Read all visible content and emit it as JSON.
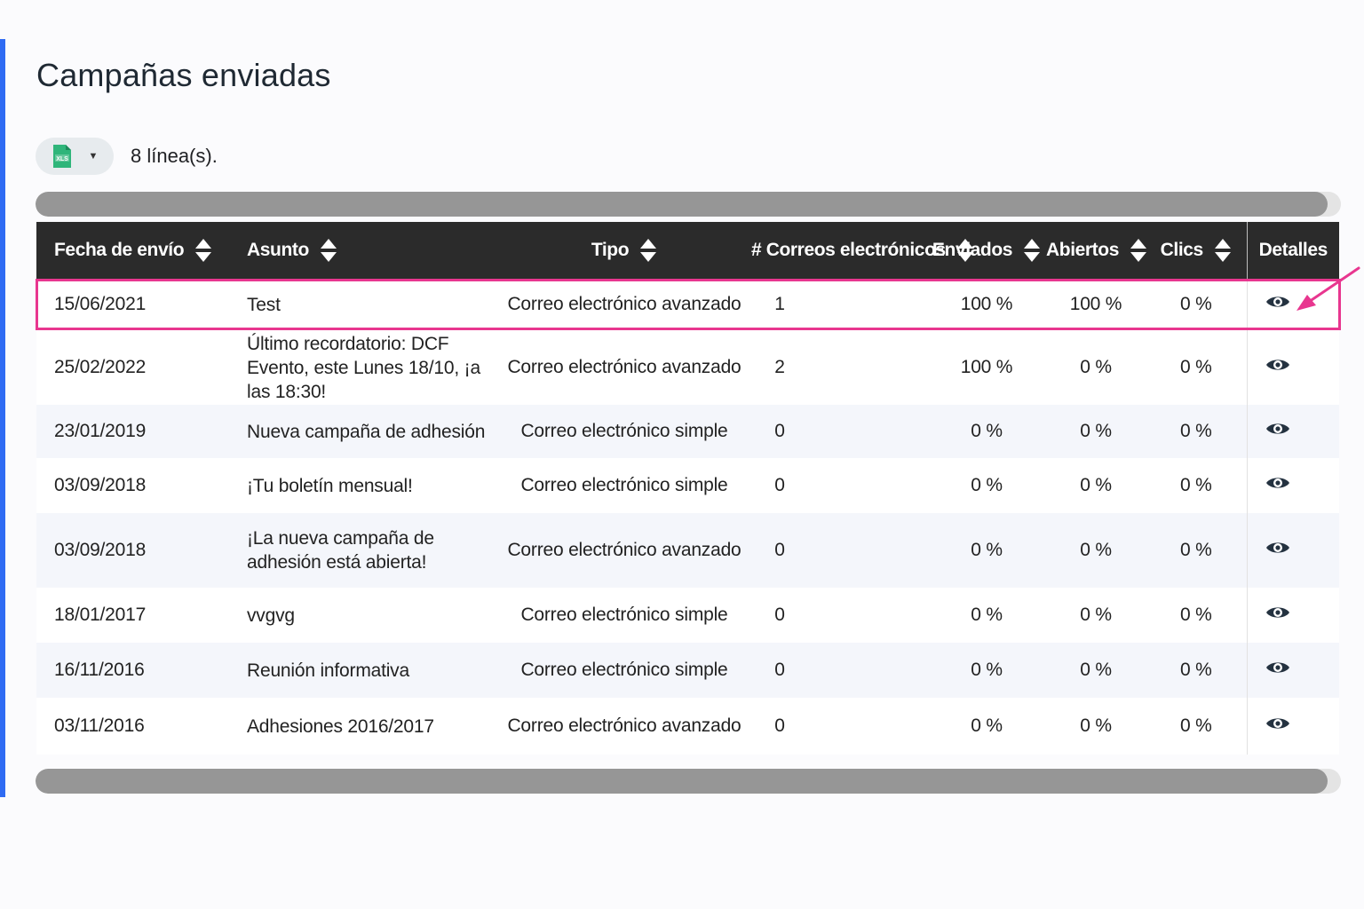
{
  "page": {
    "title": "Campañas enviadas",
    "accent_color": "#2f6bf3",
    "highlight_color": "#e8368f"
  },
  "toolbar": {
    "export_icon": "xls-file-icon",
    "export_dropdown_icon": "caret-down-icon",
    "row_count": "8 línea(s)."
  },
  "table": {
    "headers": {
      "date": "Fecha de envío",
      "subject": "Asunto",
      "type": "Tipo",
      "emails": "# Correos electrónicos",
      "sent": "Enviados",
      "opened": "Abiertos",
      "clicks": "Clics",
      "details": "Detalles"
    },
    "sort_icon": "sort-updown-icon",
    "details_icon": "eye-icon",
    "rows": [
      {
        "date": "15/06/2021",
        "subject": "Test",
        "type": "Correo electrónico avanzado",
        "emails": "1",
        "sent": "100 %",
        "opened": "100 %",
        "clicks": "0 %"
      },
      {
        "date": "25/02/2022",
        "subject": "Último recordatorio: DCF Evento, este Lunes 18/10, ¡a las 18:30!",
        "type": "Correo electrónico avanzado",
        "emails": "2",
        "sent": "100 %",
        "opened": "0 %",
        "clicks": "0 %"
      },
      {
        "date": "23/01/2019",
        "subject": "Nueva campaña de adhesión",
        "type": "Correo electrónico simple",
        "emails": "0",
        "sent": "0 %",
        "opened": "0 %",
        "clicks": "0 %"
      },
      {
        "date": "03/09/2018",
        "subject": "¡Tu boletín mensual!",
        "type": "Correo electrónico simple",
        "emails": "0",
        "sent": "0 %",
        "opened": "0 %",
        "clicks": "0 %"
      },
      {
        "date": "03/09/2018",
        "subject": "¡La nueva campaña de adhesión está abierta!",
        "type": "Correo electrónico avanzado",
        "emails": "0",
        "sent": "0 %",
        "opened": "0 %",
        "clicks": "0 %"
      },
      {
        "date": "18/01/2017",
        "subject": "vvgvg",
        "type": "Correo electrónico simple",
        "emails": "0",
        "sent": "0 %",
        "opened": "0 %",
        "clicks": "0 %"
      },
      {
        "date": "16/11/2016",
        "subject": "Reunión informativa",
        "type": "Correo electrónico simple",
        "emails": "0",
        "sent": "0 %",
        "opened": "0 %",
        "clicks": "0 %"
      },
      {
        "date": "03/11/2016",
        "subject": "Adhesiones 2016/2017",
        "type": "Correo electrónico avanzado",
        "emails": "0",
        "sent": "0 %",
        "opened": "0 %",
        "clicks": "0 %"
      }
    ]
  },
  "scrollbar": {
    "visible_fraction": 0.99
  },
  "annotation": {
    "highlighted_row": 0,
    "arrow_target": "details-button-row-1"
  }
}
